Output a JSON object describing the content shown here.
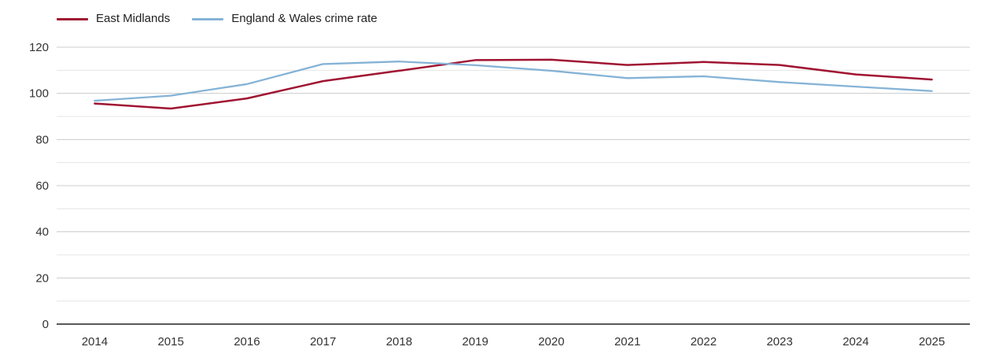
{
  "chart_data": {
    "type": "line",
    "title": "",
    "xlabel": "",
    "ylabel": "",
    "categories": [
      "2014",
      "2015",
      "2016",
      "2017",
      "2018",
      "2019",
      "2020",
      "2021",
      "2022",
      "2023",
      "2024",
      "2025"
    ],
    "series": [
      {
        "name": "East Midlands",
        "color": "#a01432",
        "stroke_width": 2.5,
        "values": [
          95.6,
          93.4,
          97.8,
          105.3,
          109.8,
          114.4,
          114.6,
          112.3,
          113.6,
          112.3,
          108.2,
          106.0
        ]
      },
      {
        "name": "England & Wales crime rate",
        "color": "#85b3d6",
        "stroke_width": 2.3,
        "values": [
          96.8,
          99.0,
          104.0,
          112.7,
          113.8,
          112.2,
          109.8,
          106.6,
          107.4,
          104.9,
          102.9,
          101.0
        ]
      }
    ],
    "ylim": [
      0,
      120
    ],
    "ytick_minor_step": 10,
    "yticks_labeled": [
      0,
      20,
      40,
      60,
      80,
      100,
      120
    ],
    "grid": true,
    "legend_position": "top-left",
    "colors": {
      "grid_major": "#cccccc",
      "grid_minor": "#e5e5e5",
      "axis_line": "#222222",
      "tick_text": "#333333"
    }
  }
}
